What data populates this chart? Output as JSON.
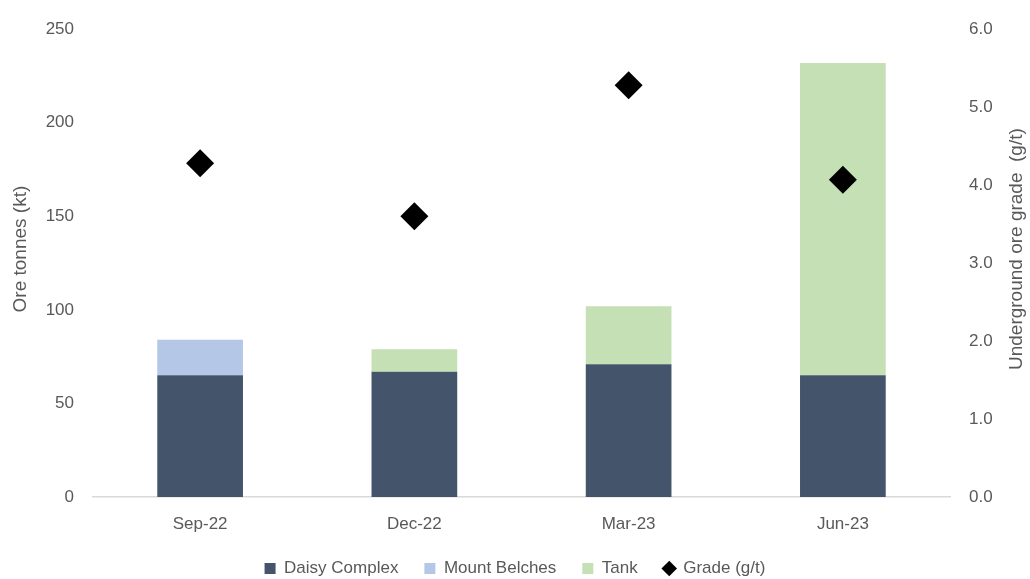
{
  "chart_data": {
    "type": "bar",
    "stacked": true,
    "categories": [
      "Sep-22",
      "Dec-22",
      "Mar-23",
      "Jun-23"
    ],
    "series": [
      {
        "name": "Daisy Complex",
        "color": "#44546a",
        "values": [
          65,
          67,
          71,
          65
        ]
      },
      {
        "name": "Mount Belches",
        "color": "#b4c7e7",
        "values": [
          19,
          null,
          null,
          null
        ]
      },
      {
        "name": "Tank",
        "color": "#c5e0b4",
        "values": [
          null,
          12,
          31,
          167
        ]
      },
      {
        "name": "Grade (g/t)",
        "type": "scatter",
        "axis": "y2",
        "marker": "diamond",
        "color": "#000000",
        "x": [
          "Sep-22",
          "Dec-22",
          "Mar-23",
          "Jun-23"
        ],
        "values": [
          4.28,
          3.6,
          5.28,
          4.07
        ]
      }
    ],
    "ylabel": "Ore tonnes (kt)",
    "y2label": "Underground ore grade  (g/t)",
    "ylim": [
      0,
      250
    ],
    "yticks": [
      0,
      50,
      100,
      150,
      200,
      250
    ],
    "y2lim": [
      0,
      6
    ],
    "y2ticks": [
      {
        "value": 0,
        "label": "0.0"
      },
      {
        "value": 1,
        "label": "1.0"
      },
      {
        "value": 2,
        "label": "2.0"
      },
      {
        "value": 3,
        "label": "3.0"
      },
      {
        "value": 4,
        "label": "4.0"
      },
      {
        "value": 5,
        "label": "5.0"
      },
      {
        "value": 6,
        "label": "6.0"
      }
    ],
    "legend": "bottom"
  }
}
